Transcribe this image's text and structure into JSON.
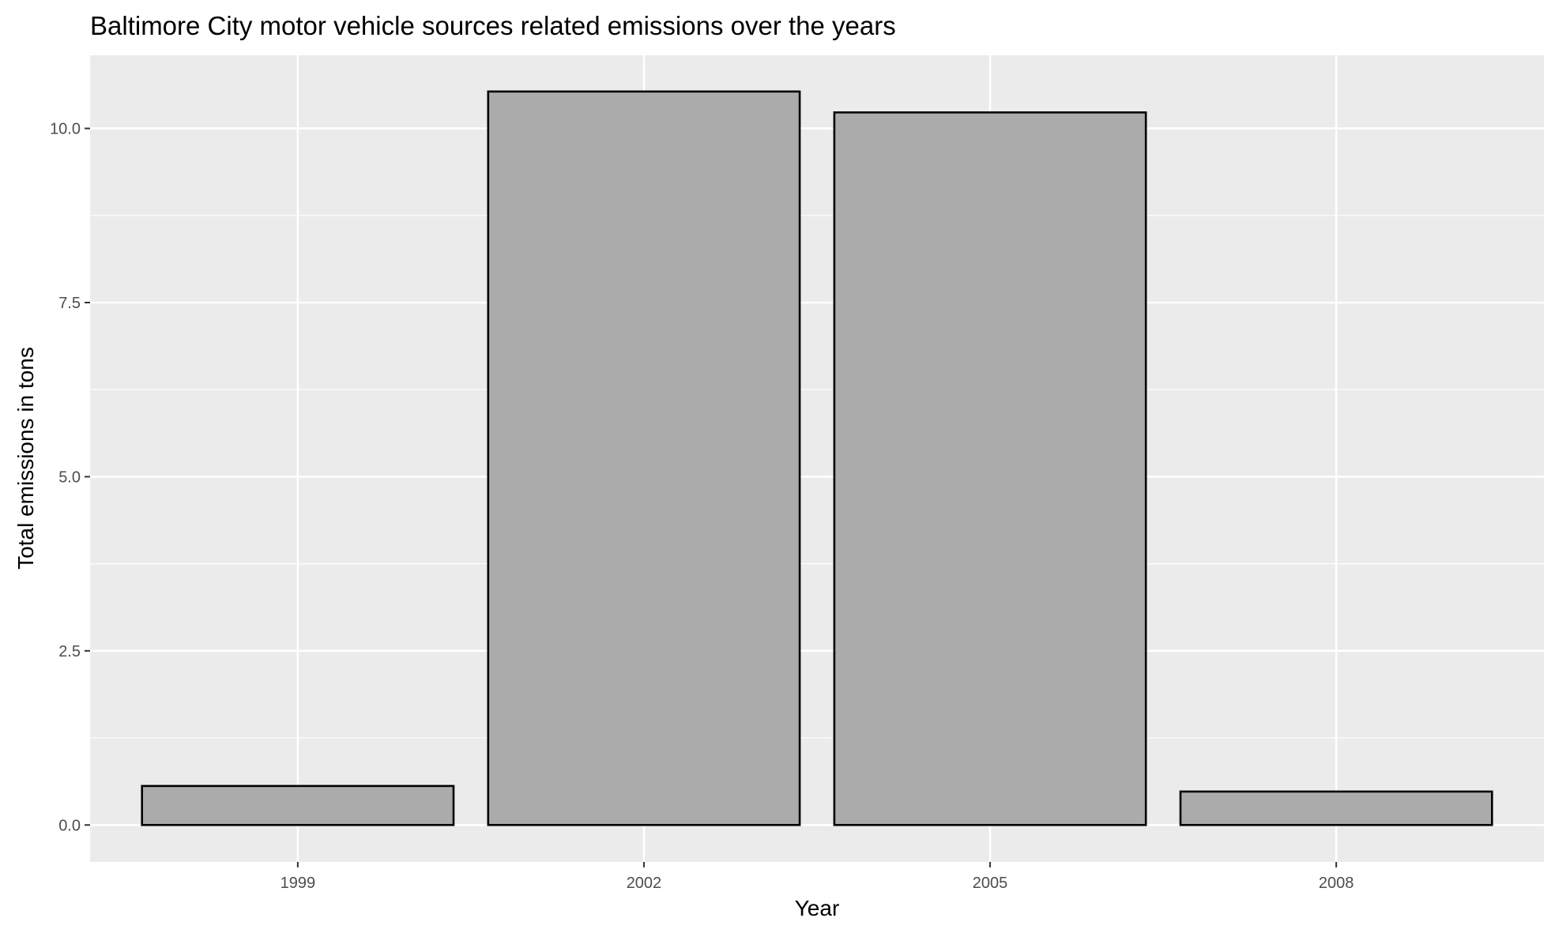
{
  "chart_data": {
    "type": "bar",
    "title": "Baltimore City motor vehicle sources related emissions over the years",
    "xlabel": "Year",
    "ylabel": "Total emissions in tons",
    "categories": [
      "1999",
      "2002",
      "2005",
      "2008"
    ],
    "values": [
      0.56,
      10.53,
      10.23,
      0.48
    ],
    "ylim": [
      -0.53,
      11.05
    ],
    "yticks": [
      0.0,
      2.5,
      5.0,
      7.5,
      10.0
    ],
    "ytick_labels": [
      "0.0",
      "2.5",
      "5.0",
      "7.5",
      "10.0"
    ],
    "grid": true,
    "legend": "none",
    "colors": {
      "panel_background": "#ebebeb",
      "grid": "#ffffff",
      "bar_fill": "#ababab",
      "bar_outline": "#000000",
      "tick_text": "#4d4d4d"
    }
  }
}
